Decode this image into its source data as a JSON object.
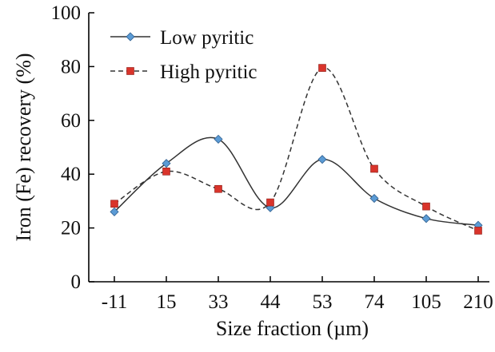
{
  "chart_data": {
    "type": "line",
    "categories": [
      "-11",
      "15",
      "33",
      "44",
      "53",
      "74",
      "105",
      "210"
    ],
    "xlabel": "Size fraction (µm)",
    "ylabel": "Iron (Fe) recovery (%)",
    "ylim": [
      0,
      100
    ],
    "yticks": [
      "0",
      "20",
      "40",
      "60",
      "80",
      "100"
    ],
    "grid": false,
    "legend_position": "top-left",
    "smooth": true,
    "series": [
      {
        "name": "Low pyritic",
        "values": [
          26,
          44,
          53,
          27.5,
          45.5,
          31,
          23.5,
          21
        ],
        "line_color": "#333333",
        "line_style": "solid",
        "marker": "diamond",
        "marker_color": "#5b9bd5"
      },
      {
        "name": "High pyritic",
        "values": [
          29,
          41,
          34.5,
          29.5,
          79.5,
          42,
          28,
          19
        ],
        "line_color": "#333333",
        "line_style": "dashed",
        "marker": "square",
        "marker_color": "#d9342b"
      }
    ]
  }
}
